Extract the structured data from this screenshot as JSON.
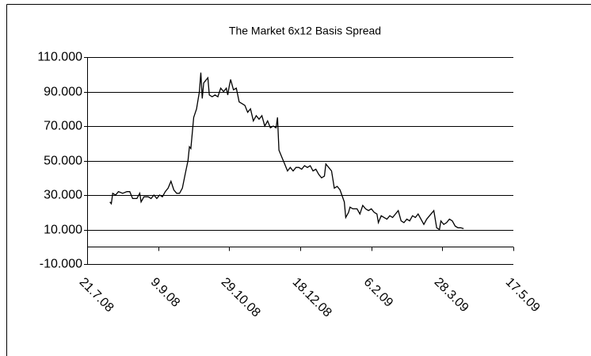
{
  "chart_data": {
    "type": "line",
    "title": "The Market 6x12 Basis Spread",
    "xlim": [
      "2008-07-21",
      "2009-05-17"
    ],
    "xticks": [
      {
        "value": "2008-07-21",
        "label": "21.7.08"
      },
      {
        "value": "2008-09-09",
        "label": "9.9.08"
      },
      {
        "value": "2008-10-29",
        "label": "29.10.08"
      },
      {
        "value": "2008-12-18",
        "label": "18.12.08"
      },
      {
        "value": "2009-02-06",
        "label": "6.2.09"
      },
      {
        "value": "2009-03-28",
        "label": "28.3.09"
      },
      {
        "value": "2009-05-17",
        "label": "17.5.09"
      }
    ],
    "ylim": [
      -10,
      110
    ],
    "yticks": [
      {
        "value": 110,
        "label": "110.000"
      },
      {
        "value": 90,
        "label": "90.000"
      },
      {
        "value": 70,
        "label": "70.000"
      },
      {
        "value": 50,
        "label": "50.000"
      },
      {
        "value": 30,
        "label": "30.000"
      },
      {
        "value": 10,
        "label": "10.000"
      },
      {
        "value": -10,
        "label": "-10.000"
      }
    ],
    "grid": true,
    "color": "#000000",
    "x": [
      "2008-08-06",
      "2008-08-07",
      "2008-08-08",
      "2008-08-10",
      "2008-08-12",
      "2008-08-15",
      "2008-08-18",
      "2008-08-20",
      "2008-08-22",
      "2008-08-25",
      "2008-08-27",
      "2008-08-28",
      "2008-08-30",
      "2008-09-02",
      "2008-09-04",
      "2008-09-06",
      "2008-09-08",
      "2008-09-10",
      "2008-09-12",
      "2008-09-14",
      "2008-09-16",
      "2008-09-18",
      "2008-09-20",
      "2008-09-22",
      "2008-09-24",
      "2008-09-26",
      "2008-09-28",
      "2008-09-30",
      "2008-10-01",
      "2008-10-02",
      "2008-10-04",
      "2008-10-06",
      "2008-10-08",
      "2008-10-09",
      "2008-10-10",
      "2008-10-11",
      "2008-10-13",
      "2008-10-14",
      "2008-10-15",
      "2008-10-17",
      "2008-10-19",
      "2008-10-21",
      "2008-10-23",
      "2008-10-25",
      "2008-10-27",
      "2008-10-28",
      "2008-10-29",
      "2008-10-30",
      "2008-11-01",
      "2008-11-03",
      "2008-11-05",
      "2008-11-07",
      "2008-11-09",
      "2008-11-11",
      "2008-11-13",
      "2008-11-15",
      "2008-11-17",
      "2008-11-19",
      "2008-11-21",
      "2008-11-23",
      "2008-11-25",
      "2008-11-27",
      "2008-11-29",
      "2008-12-01",
      "2008-12-02",
      "2008-12-03",
      "2008-12-05",
      "2008-12-07",
      "2008-12-09",
      "2008-12-11",
      "2008-12-13",
      "2008-12-15",
      "2008-12-17",
      "2008-12-19",
      "2008-12-21",
      "2008-12-23",
      "2008-12-25",
      "2008-12-27",
      "2008-12-29",
      "2008-12-31",
      "2009-01-02",
      "2009-01-04",
      "2009-01-05",
      "2009-01-07",
      "2009-01-09",
      "2009-01-11",
      "2009-01-13",
      "2009-01-15",
      "2009-01-18",
      "2009-01-19",
      "2009-01-21",
      "2009-01-22",
      "2009-01-24",
      "2009-01-27",
      "2009-01-29",
      "2009-01-31",
      "2009-02-02",
      "2009-02-04",
      "2009-02-06",
      "2009-02-08",
      "2009-02-10",
      "2009-02-11",
      "2009-02-13",
      "2009-02-15",
      "2009-02-17",
      "2009-02-19",
      "2009-02-21",
      "2009-02-23",
      "2009-02-25",
      "2009-02-27",
      "2009-03-01",
      "2009-03-03",
      "2009-03-05",
      "2009-03-07",
      "2009-03-09",
      "2009-03-11",
      "2009-03-13",
      "2009-03-15",
      "2009-03-17",
      "2009-03-19",
      "2009-03-21",
      "2009-03-22",
      "2009-03-24",
      "2009-03-26",
      "2009-03-27",
      "2009-03-29",
      "2009-03-31",
      "2009-04-02",
      "2009-04-04",
      "2009-04-06",
      "2009-04-08",
      "2009-04-10",
      "2009-04-12"
    ],
    "values": [
      26,
      25,
      31,
      30,
      32,
      31,
      32,
      32,
      28,
      28,
      31,
      26,
      29,
      29,
      28,
      30,
      28,
      30,
      29,
      32,
      34,
      38,
      33,
      31,
      31,
      34,
      42,
      50,
      58,
      57,
      75,
      80,
      90,
      101,
      86,
      95,
      97,
      98,
      88,
      87,
      88,
      87,
      92,
      90,
      92,
      88,
      93,
      97,
      91,
      92,
      84,
      83,
      82,
      78,
      80,
      73,
      76,
      74,
      76,
      70,
      73,
      69,
      70,
      69,
      75,
      56,
      52,
      48,
      44,
      46,
      44,
      46,
      46,
      45,
      47,
      46,
      47,
      44,
      45,
      42,
      40,
      41,
      48,
      46,
      44,
      34,
      35,
      33,
      26,
      17,
      20,
      23,
      22,
      22,
      19,
      24,
      22,
      21,
      22,
      20,
      19,
      14,
      18,
      17,
      16,
      18,
      17,
      19,
      21,
      15,
      14,
      16,
      15,
      18,
      17,
      19,
      16,
      13,
      16,
      18,
      20,
      21,
      11,
      10,
      15,
      13,
      14,
      16,
      15,
      12,
      11,
      11,
      10.5
    ]
  }
}
